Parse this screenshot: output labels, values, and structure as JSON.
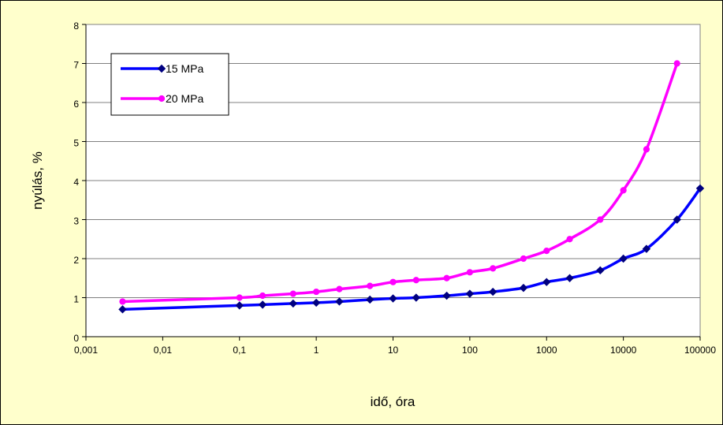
{
  "chart_data": {
    "type": "line",
    "xlabel": "idő, óra",
    "ylabel": "nyúlás, %",
    "xscale": "log",
    "xlim": [
      0.001,
      100000
    ],
    "ylim": [
      0,
      8
    ],
    "x_tick_labels": [
      "0,001",
      "0,01",
      "0,1",
      "1",
      "10",
      "100",
      "1000",
      "10000",
      "100000"
    ],
    "y_tick_labels": [
      "0",
      "1",
      "2",
      "3",
      "4",
      "5",
      "6",
      "7",
      "8"
    ],
    "grid": "horizontal",
    "legend_position": "top-left",
    "plot_background": "#ffffff",
    "chart_background": "#ffffcc",
    "series": [
      {
        "name": "15 MPa",
        "color": "#0000ff",
        "marker": "diamond",
        "marker_color": "#000080",
        "x": [
          0.003,
          0.1,
          0.2,
          0.5,
          1,
          2,
          5,
          10,
          20,
          50,
          100,
          200,
          500,
          1000,
          2000,
          5000,
          10000,
          20000,
          50000,
          100000
        ],
        "values": [
          0.7,
          0.8,
          0.82,
          0.85,
          0.87,
          0.9,
          0.95,
          0.98,
          1.0,
          1.05,
          1.1,
          1.15,
          1.25,
          1.4,
          1.5,
          1.7,
          2.0,
          2.25,
          3.0,
          3.8
        ]
      },
      {
        "name": "20 MPa",
        "color": "#ff00ff",
        "marker": "circle",
        "marker_color": "#ff00ff",
        "x": [
          0.003,
          0.1,
          0.2,
          0.5,
          1,
          2,
          5,
          10,
          20,
          50,
          100,
          200,
          500,
          1000,
          2000,
          5000,
          10000,
          20000,
          50000
        ],
        "values": [
          0.9,
          1.0,
          1.05,
          1.1,
          1.15,
          1.22,
          1.3,
          1.4,
          1.45,
          1.5,
          1.65,
          1.75,
          2.0,
          2.2,
          2.5,
          3.0,
          3.75,
          4.8,
          7.0
        ]
      }
    ]
  }
}
